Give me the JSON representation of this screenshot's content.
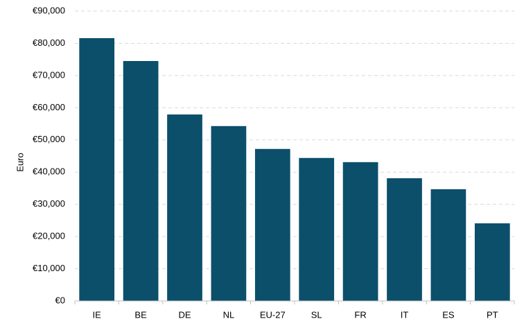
{
  "chart_data": {
    "type": "bar",
    "y_label": "Euro",
    "categories": [
      "IE",
      "BE",
      "DE",
      "NL",
      "EU-27",
      "SL",
      "FR",
      "IT",
      "ES",
      "PT"
    ],
    "values": [
      81600,
      74500,
      57900,
      54300,
      47200,
      44400,
      43100,
      38100,
      34700,
      24100
    ],
    "color": "#0b4f6b",
    "ylim": [
      0,
      90000
    ],
    "yticks": [
      {
        "value": 0,
        "label": "€0"
      },
      {
        "value": 10000,
        "label": "€10,000"
      },
      {
        "value": 20000,
        "label": "€20,000"
      },
      {
        "value": 30000,
        "label": "€30,000"
      },
      {
        "value": 40000,
        "label": "€40,000"
      },
      {
        "value": 50000,
        "label": "€50,000"
      },
      {
        "value": 60000,
        "label": "€60,000"
      },
      {
        "value": 70000,
        "label": "€70,000"
      },
      {
        "value": 80000,
        "label": "€80,000"
      },
      {
        "value": 90000,
        "label": "€90,000"
      }
    ],
    "grid": true
  }
}
